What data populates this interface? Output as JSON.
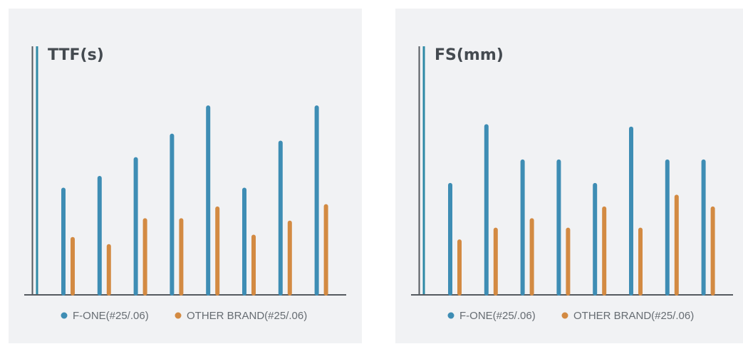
{
  "colors": {
    "panel_bg": "#f1f2f4",
    "series_primary": "#3e8db4",
    "series_secondary": "#d38a42",
    "axis": "#555a60",
    "axis_accent": "#2f8aa6",
    "text": "#444a50",
    "legend_text": "#666c72"
  },
  "chart_data": [
    {
      "type": "bar",
      "title": "TTF(s)",
      "xlabel": "",
      "ylabel": "",
      "categories": [
        "",
        "",
        "",
        "",
        "",
        "",
        "",
        ""
      ],
      "ylim": [
        0,
        100
      ],
      "grid": false,
      "legend_position": "bottom",
      "series": [
        {
          "name": "F-ONE(#25/.06)",
          "color": "#3e8db4",
          "values": [
            45,
            50,
            58,
            68,
            80,
            45,
            65,
            80
          ]
        },
        {
          "name": "OTHER BRAND(#25/.06)",
          "color": "#d38a42",
          "values": [
            24,
            21,
            32,
            32,
            37,
            25,
            31,
            38
          ]
        }
      ]
    },
    {
      "type": "bar",
      "title": "FS(mm)",
      "xlabel": "",
      "ylabel": "",
      "categories": [
        "",
        "",
        "",
        "",
        "",
        "",
        "",
        ""
      ],
      "ylim": [
        0,
        100
      ],
      "grid": false,
      "legend_position": "bottom",
      "series": [
        {
          "name": "F-ONE(#25/.06)",
          "color": "#3e8db4",
          "values": [
            47,
            72,
            57,
            57,
            47,
            71,
            57,
            57
          ]
        },
        {
          "name": "OTHER BRAND(#25/.06)",
          "color": "#d38a42",
          "values": [
            23,
            28,
            32,
            28,
            37,
            28,
            42,
            37
          ]
        }
      ]
    }
  ]
}
